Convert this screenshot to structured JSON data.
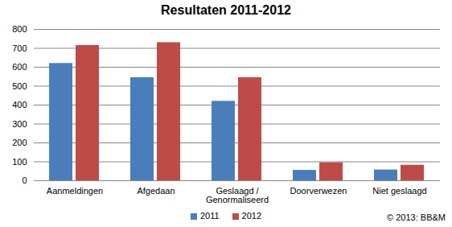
{
  "chart_data": {
    "type": "bar",
    "title": "Resultaten 2011-2012",
    "categories": [
      "Aanmeldingen",
      "Afgedaan",
      "Geslaagd / Genormaliseerd",
      "Doorverwezen",
      "Niet geslaagd"
    ],
    "series": [
      {
        "name": "2011",
        "color": "#4a7ebb",
        "values": [
          620,
          545,
          420,
          55,
          57
        ]
      },
      {
        "name": "2012",
        "color": "#be4b48",
        "values": [
          715,
          730,
          545,
          95,
          82
        ]
      }
    ],
    "ylim": [
      0,
      800
    ],
    "yticks": [
      0,
      100,
      200,
      300,
      400,
      500,
      600,
      700,
      800
    ],
    "grid": true,
    "legend": "bottom",
    "annotation": "© 2013: BB&M"
  }
}
